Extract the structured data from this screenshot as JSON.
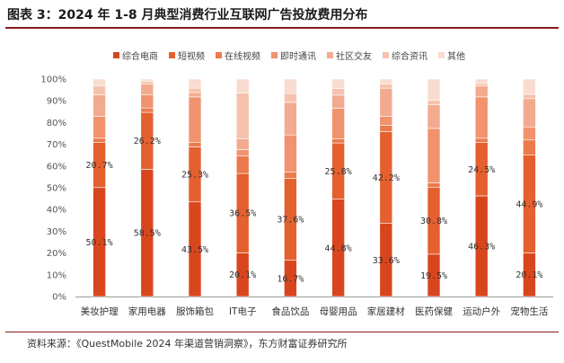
{
  "title": "图表 3：2024 年 1-8 月典型消费行业互联网广告投放费用分布",
  "source": "资料来源：《QuestMobile 2024 年渠道营销洞察》，东方财富证券研究所",
  "chart_data": {
    "type": "bar",
    "stacked": true,
    "categories": [
      "美妆护理",
      "家用电器",
      "服饰箱包",
      "IT电子",
      "食品饮品",
      "母婴用品",
      "家居建材",
      "医药保健",
      "运动户外",
      "宠物生活"
    ],
    "series": [
      {
        "name": "综合电商",
        "color": "#d9461e",
        "values": [
          50.1,
          58.5,
          43.5,
          20.1,
          16.7,
          44.8,
          33.6,
          19.5,
          46.3,
          20.1
        ]
      },
      {
        "name": "短视频",
        "color": "#e4602f",
        "values": [
          20.7,
          26.2,
          25.3,
          36.5,
          37.6,
          25.8,
          42.2,
          30.8,
          24.5,
          44.9
        ]
      },
      {
        "name": "在线视频",
        "color": "#eb7a4d",
        "values": [
          2,
          2,
          2,
          8,
          3,
          2,
          3,
          2,
          2,
          7
        ]
      },
      {
        "name": "即时通讯",
        "color": "#f0936e",
        "values": [
          10,
          6,
          21,
          3,
          17,
          14,
          4,
          25,
          19,
          6
        ]
      },
      {
        "name": "社区交友",
        "color": "#f3ab8f",
        "values": [
          10,
          5,
          2,
          5,
          15,
          6,
          13,
          11,
          5,
          13
        ]
      },
      {
        "name": "综合资讯",
        "color": "#f6c2ad",
        "values": [
          4,
          1.3,
          2,
          21,
          4,
          3,
          2,
          2,
          1.2,
          2
        ]
      },
      {
        "name": "其他",
        "color": "#f9dccf",
        "values": [
          3.2,
          1,
          4.2,
          6.4,
          6.7,
          4.4,
          2.2,
          9.7,
          2,
          7
        ]
      }
    ],
    "data_labels": [
      [
        50.1,
        58.5,
        43.5,
        20.1,
        16.7,
        44.8,
        33.6,
        19.5,
        46.3,
        20.1
      ],
      [
        20.7,
        26.2,
        25.3,
        36.5,
        37.6,
        25.8,
        42.2,
        30.8,
        24.5,
        44.9
      ]
    ],
    "y_ticks": [
      "0%",
      "10%",
      "20%",
      "30%",
      "40%",
      "50%",
      "60%",
      "70%",
      "80%",
      "90%",
      "100%"
    ],
    "ylim": [
      0,
      100
    ],
    "grid": false,
    "legend": "top"
  }
}
